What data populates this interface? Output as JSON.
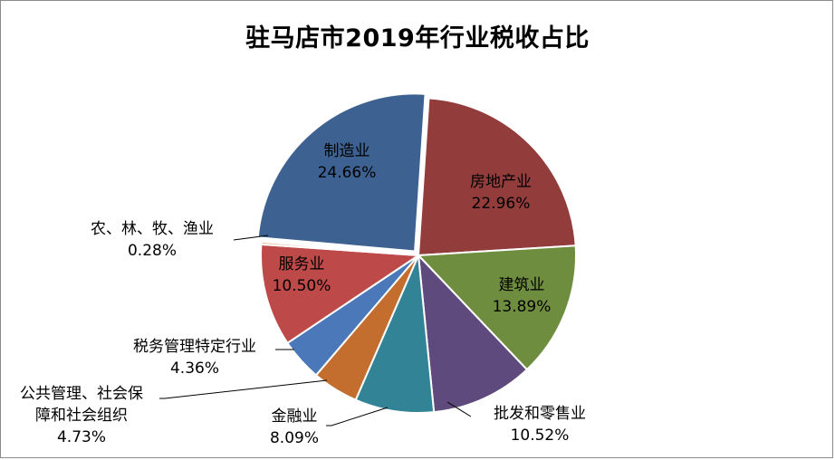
{
  "chart_data": {
    "type": "pie",
    "title": "驻马店市2019年行业税收占比",
    "slices": [
      {
        "name": "制造业",
        "value": 24.66,
        "label": "24.66%",
        "color": "#3d6291"
      },
      {
        "name": "房地产业",
        "value": 22.96,
        "label": "22.96%",
        "color": "#923c3c"
      },
      {
        "name": "建筑业",
        "value": 13.89,
        "label": "13.89%",
        "color": "#6f8d3e"
      },
      {
        "name": "批发和零售业",
        "value": 10.52,
        "label": "10.52%",
        "color": "#5e4a7d"
      },
      {
        "name": "金融业",
        "value": 8.09,
        "label": "8.09%",
        "color": "#338397"
      },
      {
        "name": "公共管理、社会保障和社会组织",
        "value": 4.73,
        "label": "4.73%",
        "color": "#c36d2e"
      },
      {
        "name": "税务管理特定行业",
        "value": 4.36,
        "label": "4.36%",
        "color": "#4a78b9"
      },
      {
        "name": "服务业",
        "value": 10.5,
        "label": "10.50%",
        "color": "#bd4a48"
      },
      {
        "name": "农、林、牧、渔业",
        "value": 0.28,
        "label": "0.28%",
        "color": "#f2b594"
      }
    ],
    "legend": "none"
  }
}
